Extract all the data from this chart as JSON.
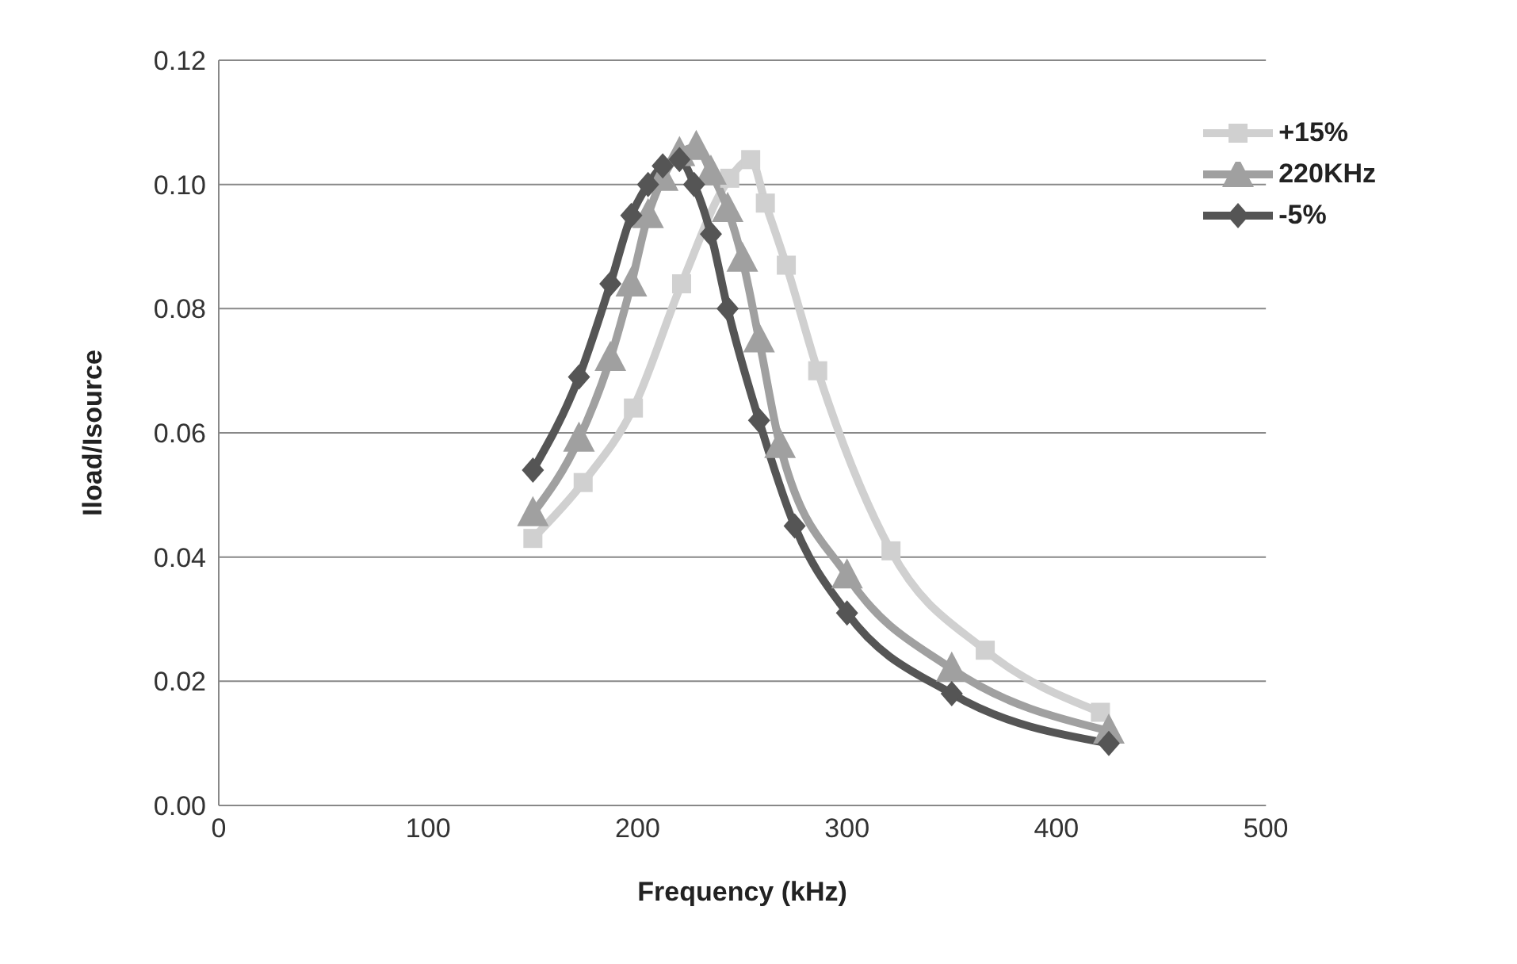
{
  "chart_data": {
    "type": "line",
    "xlabel": "Frequency (kHz)",
    "ylabel": "Iload/Isource",
    "xlim": [
      0,
      500
    ],
    "xticks": [
      0,
      100,
      200,
      300,
      400,
      500
    ],
    "ylim": [
      0,
      0.12
    ],
    "yticks": [
      {
        "value": 0,
        "label": "0.00"
      },
      {
        "value": 0.02,
        "label": "0.02"
      },
      {
        "value": 0.04,
        "label": "0.04"
      },
      {
        "value": 0.06,
        "label": "0.06"
      },
      {
        "value": 0.08,
        "label": "0.08"
      },
      {
        "value": 0.1,
        "label": "0.10"
      },
      {
        "value": 0.12,
        "label": "0.12"
      }
    ],
    "grid": "y",
    "legend": "top right",
    "series": [
      {
        "name": "+15%",
        "color": "#d0d0d0",
        "marker": "square",
        "x": [
          150,
          174,
          198,
          221,
          244,
          254,
          261,
          271,
          286,
          321,
          366,
          421
        ],
        "values": [
          0.043,
          0.052,
          0.064,
          0.084,
          0.101,
          0.104,
          0.097,
          0.087,
          0.07,
          0.041,
          0.025,
          0.015
        ]
      },
      {
        "name": "220KHz",
        "color": "#a0a0a0",
        "marker": "triangle",
        "x": [
          150,
          172,
          187,
          197,
          205,
          212,
          220,
          228,
          235,
          243,
          250,
          258,
          268,
          300,
          350,
          425
        ],
        "values": [
          0.047,
          0.059,
          0.072,
          0.084,
          0.095,
          0.101,
          0.105,
          0.106,
          0.102,
          0.096,
          0.088,
          0.075,
          0.058,
          0.037,
          0.022,
          0.012
        ]
      },
      {
        "name": "-5%",
        "color": "#555555",
        "marker": "diamond",
        "x": [
          150,
          172,
          187,
          197,
          205,
          212,
          220,
          227,
          235,
          243,
          258,
          275,
          300,
          350,
          425
        ],
        "values": [
          0.054,
          0.069,
          0.084,
          0.095,
          0.1,
          0.103,
          0.104,
          0.1,
          0.092,
          0.08,
          0.062,
          0.045,
          0.031,
          0.018,
          0.01
        ]
      }
    ]
  }
}
